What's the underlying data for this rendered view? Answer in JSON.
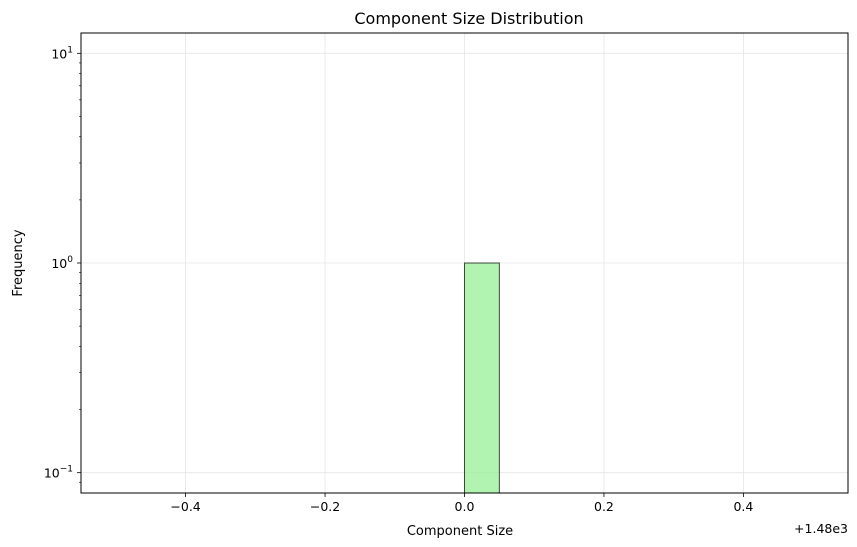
{
  "chart_data": {
    "type": "bar",
    "title": "Component Size Distribution",
    "xlabel": "Component Size",
    "ylabel": "Frequency",
    "x_offset_label": "+1.48e3",
    "x_offset": 1480,
    "xlim": [
      -0.55,
      0.55
    ],
    "ylim": [
      0.08,
      12.5
    ],
    "yscale": "log",
    "grid": true,
    "x_ticks": [
      {
        "value": -0.4,
        "label": "−0.4"
      },
      {
        "value": -0.2,
        "label": "−0.2"
      },
      {
        "value": 0.0,
        "label": "0.0"
      },
      {
        "value": 0.2,
        "label": "0.2"
      },
      {
        "value": 0.4,
        "label": "0.4"
      }
    ],
    "y_ticks": [
      {
        "value": 0.1,
        "base": "10",
        "exp": "−1"
      },
      {
        "value": 1,
        "base": "10",
        "exp": "0"
      },
      {
        "value": 10,
        "base": "10",
        "exp": "1"
      }
    ],
    "bars": [
      {
        "x0": 0.0,
        "x1": 0.05,
        "value": 1
      }
    ],
    "colors": {
      "bar_fill": "#90ee90",
      "bar_edge": "#000000",
      "grid": "#e6e6e6"
    }
  }
}
